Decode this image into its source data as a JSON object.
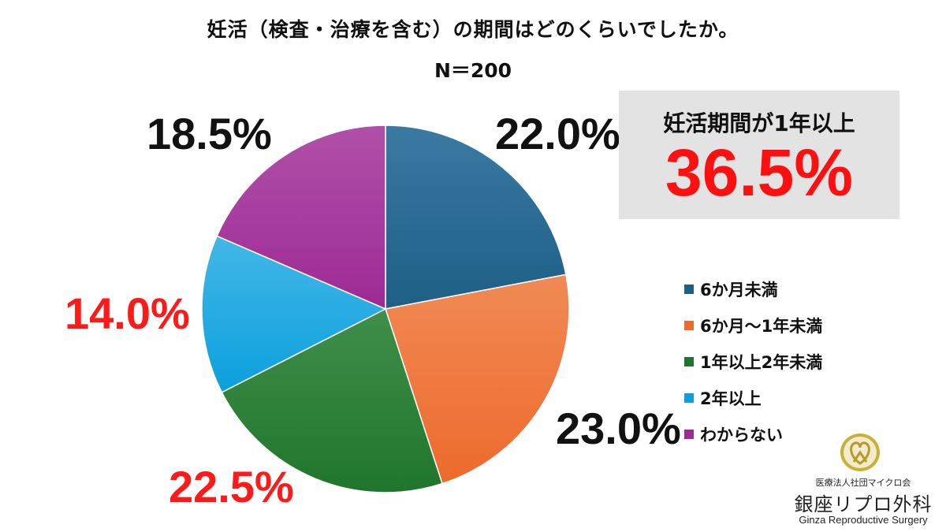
{
  "title": "妊活（検査・治療を含む）の期間はどのくらいでしたか。",
  "subtitle": "N＝200",
  "chart_data": {
    "type": "pie",
    "title": "妊活（検査・治療を含む）の期間はどのくらいでしたか。",
    "n_label": "N＝200",
    "start_angle_deg": 0,
    "direction": "clockwise",
    "slices": [
      {
        "label": "6か月未満",
        "value": 22.0,
        "display": "22.0%",
        "color": "#1e5f86",
        "light": "#3a7aa3",
        "label_color": "#111111"
      },
      {
        "label": "6か月〜1年未満",
        "value": 23.0,
        "display": "23.0%",
        "color": "#ee6a2c",
        "light": "#f08a55",
        "label_color": "#111111"
      },
      {
        "label": "1年以上2年未満",
        "value": 22.5,
        "display": "22.5%",
        "color": "#20752c",
        "light": "#3f8f4a",
        "label_color": "#ff1a1a"
      },
      {
        "label": "2年以上",
        "value": 14.0,
        "display": "14.0%",
        "color": "#0ba0dc",
        "light": "#43b7e8",
        "label_color": "#ff1a1a"
      },
      {
        "label": "わからない",
        "value": 18.5,
        "display": "18.5%",
        "color": "#9e2a95",
        "light": "#b050a8",
        "label_color": "#111111"
      }
    ],
    "legend_position": "right"
  },
  "callout": {
    "label": "妊活期間が1年以上",
    "value": "36.5%"
  },
  "logo": {
    "corp": "医療法人社団マイクロ会",
    "name": "銀座リプロ外科",
    "english": "Ginza Reproductive Surgery",
    "icon": "ribbon-heart-icon"
  }
}
